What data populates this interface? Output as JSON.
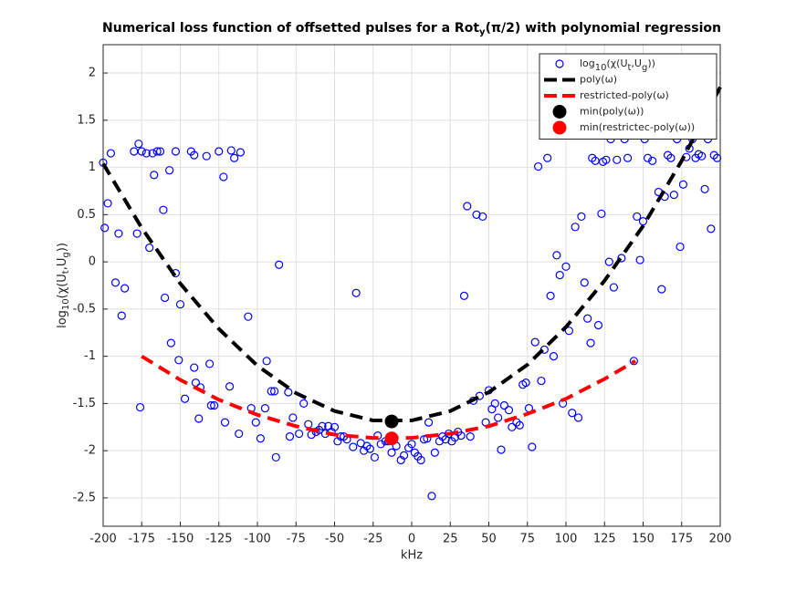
{
  "chart_data": {
    "type": "scatter",
    "title": [
      "Numerical loss function of offsetted pulses for a Rot",
      "y",
      "(π/2) with polynomial regression"
    ],
    "xlabel": "kHz",
    "ylabel": [
      "log",
      "10",
      "(χ(U",
      "t",
      ",U",
      "g",
      "))"
    ],
    "xlim": [
      -200,
      200
    ],
    "ylim": [
      -2.8,
      2.3
    ],
    "xticks": [
      -200,
      -175,
      -150,
      -125,
      -100,
      -75,
      -50,
      -25,
      0,
      25,
      50,
      75,
      100,
      125,
      150,
      175,
      200
    ],
    "yticks": [
      -2.5,
      -2,
      -1.5,
      -1,
      -0.5,
      0,
      0.5,
      1,
      1.5,
      2
    ],
    "grid": true,
    "legend": "top-right",
    "series": [
      {
        "name": [
          "log",
          "10",
          "(χ(U",
          "t",
          ",U",
          "g",
          "))"
        ],
        "color": "#0000ff",
        "marker": "open-circle",
        "x": [
          -200,
          -195,
          -180,
          -177,
          -175,
          -172,
          -168,
          -165,
          -163,
          -157,
          -167,
          -153,
          -143,
          -141,
          -133,
          -125,
          -122,
          -117,
          -115,
          -111,
          -197,
          -199,
          -190,
          -192,
          -186,
          -188,
          -178,
          -170,
          -161,
          -160,
          -153,
          -156,
          -150,
          -151,
          -147,
          -141,
          -140,
          -137,
          -138,
          -131,
          -130,
          -128,
          -121,
          -118,
          -112,
          -106,
          -104,
          -101,
          -98,
          -95,
          -94,
          -91,
          -89,
          -88,
          -86,
          -80,
          -79,
          -77,
          -73,
          -70,
          -67,
          -65,
          -62,
          -60,
          -58,
          -56,
          -54,
          -52,
          -50,
          -48,
          -46,
          -44,
          -42,
          -38,
          -36,
          -33,
          -31,
          -29,
          -27,
          -24,
          -22,
          -20,
          -17,
          -15,
          -13,
          -10,
          -7,
          -5,
          -2,
          0,
          2,
          4,
          6,
          8,
          10,
          11,
          13,
          15,
          18,
          20,
          22,
          24,
          26,
          28,
          30,
          32,
          34,
          36,
          38,
          40,
          42,
          44,
          46,
          48,
          50,
          52,
          54,
          56,
          58,
          60,
          63,
          65,
          68,
          70,
          72,
          74,
          76,
          78,
          80,
          82,
          84,
          86,
          88,
          90,
          92,
          94,
          96,
          98,
          100,
          102,
          104,
          106,
          108,
          110,
          112,
          114,
          116,
          117,
          119,
          121,
          123,
          124,
          126,
          128,
          129,
          131,
          133,
          136,
          138,
          140,
          144,
          146,
          148,
          150,
          151,
          153,
          156,
          160,
          162,
          164,
          166,
          168,
          170,
          172,
          176,
          174,
          178,
          180,
          182,
          184,
          186,
          188,
          190,
          192,
          194,
          196,
          198,
          -176
        ],
        "y": [
          1.05,
          1.15,
          1.17,
          1.25,
          1.17,
          1.15,
          1.15,
          1.17,
          1.17,
          0.97,
          0.92,
          1.17,
          1.17,
          1.13,
          1.12,
          1.17,
          0.9,
          1.18,
          1.1,
          1.16,
          0.62,
          0.36,
          0.3,
          -0.22,
          -0.28,
          -0.57,
          0.3,
          0.15,
          0.55,
          -0.38,
          -0.12,
          -0.86,
          -0.45,
          -1.04,
          -1.45,
          -1.12,
          -1.28,
          -1.33,
          -1.66,
          -1.08,
          -1.52,
          -1.52,
          -1.7,
          -1.32,
          -1.82,
          -0.58,
          -1.55,
          -1.7,
          -1.87,
          -1.55,
          -1.05,
          -1.37,
          -1.37,
          -2.07,
          -0.03,
          -1.38,
          -1.85,
          -1.65,
          -1.82,
          -1.5,
          -1.72,
          -1.83,
          -1.8,
          -1.78,
          -1.74,
          -1.82,
          -1.74,
          -1.8,
          -1.75,
          -1.9,
          -1.85,
          -1.85,
          -1.88,
          -1.96,
          -0.33,
          -1.92,
          -2.0,
          -1.95,
          -1.98,
          -2.07,
          -1.84,
          -1.93,
          -1.9,
          -1.9,
          -2.02,
          -1.95,
          -2.1,
          -2.05,
          -1.97,
          -1.93,
          -2.02,
          -2.06,
          -2.1,
          -1.88,
          -1.87,
          -1.7,
          -2.48,
          -2.02,
          -1.9,
          -1.85,
          -1.88,
          -1.82,
          -1.9,
          -1.86,
          -1.8,
          -1.84,
          -0.36,
          0.59,
          -1.85,
          -1.47,
          0.5,
          -1.42,
          0.48,
          -1.7,
          -1.36,
          -1.56,
          -1.5,
          -1.65,
          -1.99,
          -1.52,
          -1.57,
          -1.75,
          -1.7,
          -1.73,
          -1.3,
          -1.28,
          -1.55,
          -1.96,
          -0.85,
          1.01,
          -1.26,
          -0.93,
          1.1,
          -0.36,
          -1.0,
          0.07,
          -0.14,
          -1.5,
          -0.05,
          -0.73,
          -1.6,
          0.37,
          -1.65,
          0.48,
          -0.22,
          -0.6,
          -0.86,
          1.1,
          1.07,
          -0.67,
          0.51,
          1.06,
          1.08,
          0.0,
          1.3,
          -0.27,
          1.08,
          0.04,
          1.3,
          1.1,
          -1.05,
          0.48,
          0.02,
          0.43,
          1.3,
          1.1,
          1.07,
          0.74,
          -0.29,
          0.69,
          1.13,
          1.1,
          0.71,
          1.3,
          0.82,
          0.16,
          1.11,
          1.2,
          1.3,
          1.1,
          1.14,
          1.12,
          0.77,
          1.3,
          0.35,
          1.13,
          1.1,
          -1.54
        ]
      },
      {
        "name": [
          "poly(ω)"
        ],
        "color": "#000000",
        "marker": "dashed-line",
        "x": [
          -200,
          -175,
          -150,
          -125,
          -100,
          -75,
          -50,
          -25,
          0,
          25,
          50,
          75,
          100,
          125,
          150,
          175,
          200
        ],
        "y": [
          1.04,
          0.36,
          -0.23,
          -0.71,
          -1.1,
          -1.39,
          -1.58,
          -1.68,
          -1.68,
          -1.58,
          -1.38,
          -1.09,
          -0.69,
          -0.2,
          0.38,
          1.07,
          1.85
        ]
      },
      {
        "name": [
          "restricted-poly(ω)"
        ],
        "color": "#ff0000",
        "marker": "dashed-line",
        "x": [
          -175,
          -150,
          -125,
          -100,
          -75,
          -50,
          -25,
          0,
          25,
          50,
          75,
          100,
          125,
          145
        ],
        "y": [
          -1.0,
          -1.25,
          -1.46,
          -1.62,
          -1.74,
          -1.83,
          -1.865,
          -1.864,
          -1.82,
          -1.74,
          -1.61,
          -1.45,
          -1.24,
          -1.05
        ]
      },
      {
        "name": [
          "min(poly(ω))"
        ],
        "color": "#000000",
        "marker": "filled-circle",
        "x": [
          -13
        ],
        "y": [
          -1.69
        ]
      },
      {
        "name": [
          "min(restrictec-poly(ω))"
        ],
        "color": "#ff0000",
        "marker": "filled-circle",
        "x": [
          -13
        ],
        "y": [
          -1.87
        ]
      }
    ]
  }
}
